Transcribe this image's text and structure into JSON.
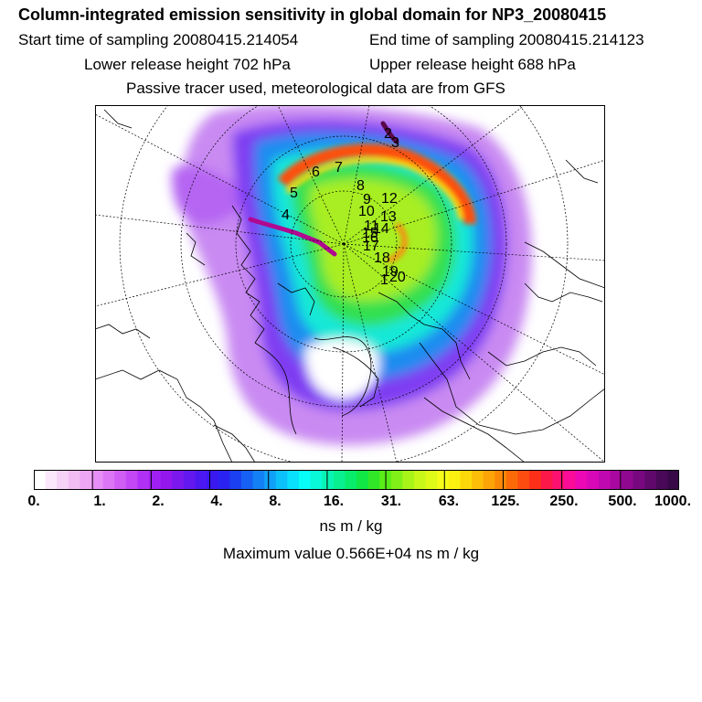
{
  "header": {
    "title": "Column-integrated emission sensitivity in global domain for NP3_20080415",
    "start_time": "Start time of sampling 20080415.214054",
    "end_time": "End time of sampling 20080415.214123",
    "lower_height": "Lower release height  702 hPa",
    "upper_height": "Upper release height  688 hPa",
    "tracer_note": "Passive tracer used, meteorological data are from GFS"
  },
  "map": {
    "trajectory_labels": [
      "1",
      "2",
      "3",
      "4",
      "5",
      "6",
      "7",
      "8",
      "9",
      "10",
      "11",
      "12",
      "13",
      "14",
      "15",
      "16",
      "17",
      "18",
      "19",
      "20"
    ]
  },
  "colorbar": {
    "tick_labels": [
      "0.",
      "1.",
      "2.",
      "4.",
      "8.",
      "16.",
      "31.",
      "63.",
      "125.",
      "250.",
      "500.",
      "1000."
    ],
    "colors": [
      "#ffffff",
      "#fbe8fb",
      "#f6d2f6",
      "#f1bdf3",
      "#eda6f3",
      "#e68ef5",
      "#dc76f5",
      "#d05ef5",
      "#c447f5",
      "#b030f5",
      "#a01ff2",
      "#9218ee",
      "#7a18ee",
      "#6318f0",
      "#4c18f2",
      "#3a18f0",
      "#2a22f0",
      "#1a40f2",
      "#1660f4",
      "#1480f6",
      "#10a0f8",
      "#0cc0fa",
      "#08e0fc",
      "#08fcf8",
      "#08f8d8",
      "#08f4b4",
      "#08f090",
      "#08ec6c",
      "#10e848",
      "#30e828",
      "#58ec18",
      "#80f018",
      "#a8f418",
      "#c8f818",
      "#e0fa18",
      "#f4fc18",
      "#fcf010",
      "#fcd808",
      "#fcbe08",
      "#fca408",
      "#fc8808",
      "#fc6a08",
      "#fc4c10",
      "#fc3018",
      "#fc1848",
      "#fc1070",
      "#f80c98",
      "#ec08b4",
      "#d808b8",
      "#c008b0",
      "#a808a0",
      "#900890",
      "#780880",
      "#60086c",
      "#4a0858",
      "#380848"
    ],
    "units": "ns m / kg",
    "max_value": "Maximum value  0.566E+04 ns m / kg"
  }
}
